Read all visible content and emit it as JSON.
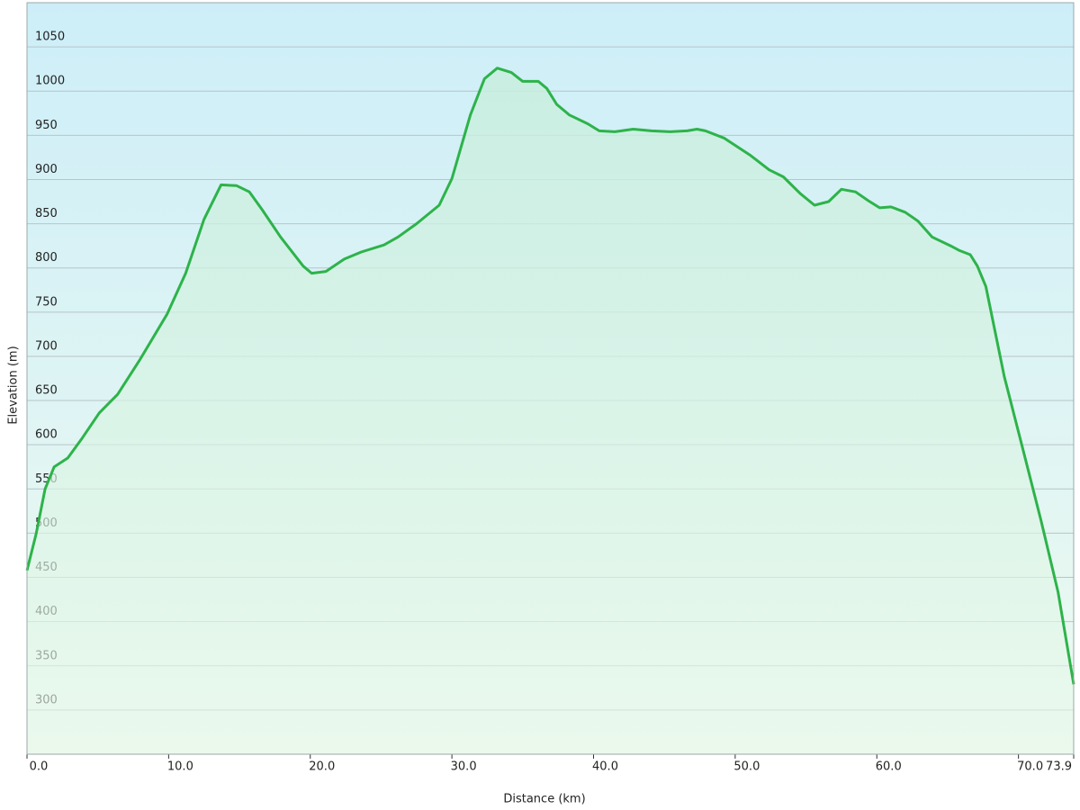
{
  "chart_data": {
    "type": "line",
    "x_label": "Distance  (km)",
    "y_label": "Elevation (m)",
    "color": "#2db34a",
    "grid": true,
    "x": [
      0,
      0.64,
      1.28,
      1.92,
      2.88,
      3.83,
      5.1,
      6.4,
      8.0,
      9.9,
      11.2,
      12.5,
      13.7,
      14.8,
      15.7,
      16.6,
      17.9,
      19.5,
      20.1,
      21.1,
      22.4,
      23.6,
      25.2,
      26.2,
      27.5,
      29.1,
      30.0,
      31.3,
      32.3,
      33.2,
      34.2,
      35.0,
      36.1,
      36.7,
      37.4,
      38.3,
      39.6,
      40.4,
      41.5,
      42.8,
      44.1,
      45.4,
      46.6,
      47.3,
      47.9,
      49.2,
      51.1,
      52.4,
      53.4,
      54.6,
      55.6,
      56.6,
      57.5,
      58.5,
      59.4,
      60.2,
      61.0,
      62.0,
      62.9,
      63.9,
      65.2,
      65.8,
      66.6,
      67.1,
      67.7,
      69.0,
      70.3,
      71.6,
      72.8,
      73.9
    ],
    "values": [
      458,
      499,
      550,
      575,
      585,
      606,
      636,
      657,
      697,
      748,
      794,
      855,
      894,
      893,
      886,
      866,
      835,
      802,
      794,
      796,
      810,
      818,
      826,
      835,
      850,
      871,
      901,
      973,
      1014,
      1026,
      1021,
      1011,
      1011,
      1003,
      985,
      973,
      963,
      955,
      954,
      957,
      955,
      954,
      955,
      957,
      955,
      947,
      927,
      911,
      903,
      884,
      871,
      875,
      889,
      886,
      876,
      868,
      869,
      863,
      853,
      835,
      825,
      820,
      815,
      802,
      779,
      677,
      596,
      514,
      433,
      329
    ],
    "xlim": [
      0,
      73.9
    ],
    "ylim": [
      250,
      1100
    ],
    "xticks": [
      {
        "value": 0,
        "label": "0.0"
      },
      {
        "value": 10,
        "label": "10.0"
      },
      {
        "value": 20,
        "label": "20.0"
      },
      {
        "value": 30,
        "label": "30.0"
      },
      {
        "value": 40,
        "label": "40.0"
      },
      {
        "value": 50,
        "label": "50.0"
      },
      {
        "value": 60,
        "label": "60.0"
      },
      {
        "value": 70,
        "label": "70.0"
      },
      73.9
    ],
    "yticks": [
      300,
      350,
      400,
      450,
      500,
      550,
      600,
      650,
      700,
      750,
      800,
      850,
      900,
      950,
      1000,
      1050
    ]
  }
}
